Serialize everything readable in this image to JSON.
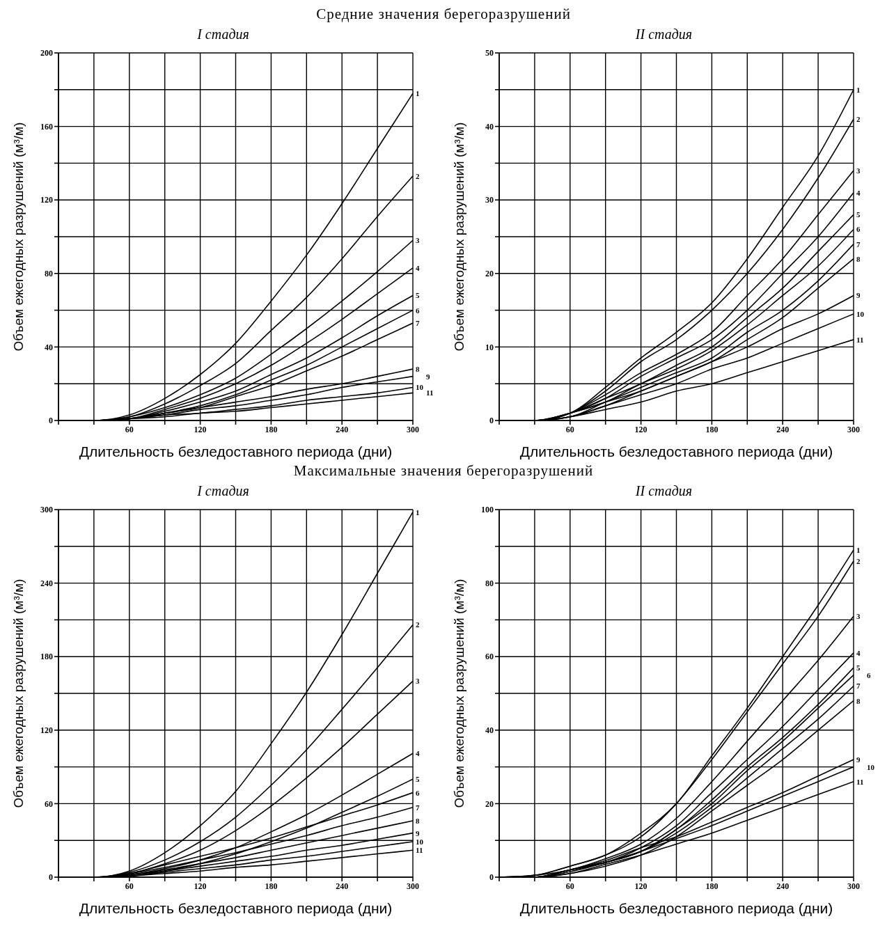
{
  "chart_data": [
    {
      "type": "line",
      "title": "I стадия",
      "annotations": [
        "Средние значения берегоразрушений"
      ],
      "xlabel": "Длительность безледоставного периода (дни)",
      "ylabel": "Объем ежегодных разрушений (м³/м)",
      "x": [
        0,
        30,
        60,
        90,
        120,
        150,
        180,
        210,
        240,
        270,
        300
      ],
      "xlim": [
        0,
        300
      ],
      "xticks": [
        {
          "value": 0,
          "label": null
        },
        {
          "value": 30,
          "label": null
        },
        60,
        {
          "value": 90,
          "label": null
        },
        120,
        {
          "value": 150,
          "label": null
        },
        180,
        {
          "value": 210,
          "label": null
        },
        240,
        {
          "value": 270,
          "label": null
        },
        300
      ],
      "ylim": [
        0,
        200
      ],
      "yticks": [
        0,
        {
          "value": 20,
          "label": null
        },
        40,
        {
          "value": 60,
          "label": null
        },
        80,
        {
          "value": 100,
          "label": null
        },
        120,
        {
          "value": 140,
          "label": null
        },
        160,
        {
          "value": 180,
          "label": null
        },
        200
      ],
      "grid": true,
      "marker": "none",
      "line_style": "solid",
      "series": [
        {
          "name": "1",
          "color": "#000000",
          "values": [
            0,
            0,
            3,
            12,
            25,
            42,
            65,
            90,
            118,
            148,
            178
          ]
        },
        {
          "name": "2",
          "color": "#000000",
          "values": [
            0,
            0,
            2,
            9,
            19,
            31,
            49,
            67,
            88,
            111,
            133
          ]
        },
        {
          "name": "3",
          "color": "#000000",
          "values": [
            0,
            0,
            2,
            7,
            14,
            23,
            36,
            50,
            65,
            81,
            98
          ]
        },
        {
          "name": "4",
          "color": "#000000",
          "values": [
            0,
            0,
            1,
            6,
            12,
            20,
            30,
            42,
            55,
            69,
            83
          ]
        },
        {
          "name": "5",
          "color": "#000000",
          "values": [
            0,
            0,
            1,
            5,
            10,
            16,
            25,
            34,
            45,
            57,
            68
          ]
        },
        {
          "name": "6",
          "color": "#000000",
          "values": [
            0,
            0,
            1,
            4,
            8,
            14,
            22,
            30,
            40,
            50,
            60
          ]
        },
        {
          "name": "7",
          "color": "#000000",
          "values": [
            0,
            0,
            1,
            4,
            7,
            13,
            19,
            27,
            35,
            44,
            53
          ]
        },
        {
          "name": "8",
          "color": "#000000",
          "values": [
            0,
            0,
            1,
            4,
            7,
            10,
            13,
            17,
            20,
            24,
            28
          ]
        },
        {
          "name": "9",
          "color": "#000000",
          "values": [
            0,
            0,
            1,
            3,
            6,
            8,
            11,
            14,
            18,
            21,
            24
          ]
        },
        {
          "name": "10",
          "color": "#000000",
          "values": [
            0,
            0,
            1,
            3,
            4,
            6,
            8,
            11,
            13,
            15,
            18
          ]
        },
        {
          "name": "11",
          "color": "#000000",
          "values": [
            0,
            0,
            1,
            2,
            4,
            5,
            7,
            9,
            11,
            13,
            15
          ]
        }
      ]
    },
    {
      "type": "line",
      "title": "II стадия",
      "xlabel": "Длительность безледоставного периода (дни)",
      "ylabel": "Объем ежегодных разрушений (м³/м)",
      "x": [
        0,
        30,
        60,
        90,
        120,
        150,
        180,
        210,
        240,
        270,
        300
      ],
      "xlim": [
        0,
        300
      ],
      "xticks": [
        {
          "value": 0,
          "label": null
        },
        {
          "value": 30,
          "label": null
        },
        60,
        {
          "value": 90,
          "label": null
        },
        120,
        {
          "value": 150,
          "label": null
        },
        180,
        {
          "value": 210,
          "label": null
        },
        240,
        {
          "value": 270,
          "label": null
        },
        300
      ],
      "ylim": [
        0,
        50
      ],
      "yticks": [
        0,
        {
          "value": 5,
          "label": null
        },
        10,
        {
          "value": 15,
          "label": null
        },
        20,
        {
          "value": 25,
          "label": null
        },
        30,
        {
          "value": 35,
          "label": null
        },
        40,
        {
          "value": 45,
          "label": null
        },
        50
      ],
      "grid": true,
      "marker": "none",
      "line_style": "solid",
      "series": [
        {
          "name": "1",
          "color": "#000000",
          "values": [
            0,
            0,
            1,
            4.5,
            8.5,
            12,
            16,
            22,
            29,
            36,
            45
          ]
        },
        {
          "name": "2",
          "color": "#000000",
          "values": [
            0,
            0,
            1,
            4,
            8,
            11,
            15,
            20,
            26,
            33,
            41
          ]
        },
        {
          "name": "3",
          "color": "#000000",
          "values": [
            0,
            0,
            1,
            3.5,
            6.5,
            9,
            12,
            17,
            22,
            28,
            34
          ]
        },
        {
          "name": "4",
          "color": "#000000",
          "values": [
            0,
            0,
            1,
            3,
            6,
            8.5,
            11,
            15,
            20,
            25,
            31
          ]
        },
        {
          "name": "5",
          "color": "#000000",
          "values": [
            0,
            0,
            1,
            3,
            5,
            7.5,
            10,
            14,
            18,
            23,
            28
          ]
        },
        {
          "name": "6",
          "color": "#000000",
          "values": [
            0,
            0,
            1,
            2.5,
            5,
            7,
            9.5,
            13,
            17,
            21,
            26
          ]
        },
        {
          "name": "7",
          "color": "#000000",
          "values": [
            0,
            0,
            0.5,
            2.5,
            4.5,
            6.5,
            8.5,
            12,
            15,
            19,
            24
          ]
        },
        {
          "name": "8",
          "color": "#000000",
          "values": [
            0,
            0,
            0.5,
            2,
            4,
            6,
            8,
            11,
            14,
            18,
            22
          ]
        },
        {
          "name": "9",
          "color": "#000000",
          "values": [
            0,
            0,
            1,
            2.5,
            4,
            6,
            8,
            10,
            12.5,
            14.5,
            17
          ]
        },
        {
          "name": "10",
          "color": "#000000",
          "values": [
            0,
            0,
            0.5,
            2,
            3.5,
            5,
            7,
            8.5,
            10.5,
            12.5,
            14.5
          ]
        },
        {
          "name": "11",
          "color": "#000000",
          "values": [
            0,
            0,
            0.5,
            1.5,
            2.5,
            4,
            5,
            6.5,
            8,
            9.5,
            11
          ]
        }
      ]
    },
    {
      "type": "line",
      "title": "I стадия",
      "annotations": [
        "Максимальные значения берегоразрушений"
      ],
      "xlabel": "Длительность безледоставного периода (дни)",
      "ylabel": "Объем ежегодных разрушений (м³/м)",
      "x": [
        0,
        30,
        60,
        90,
        120,
        150,
        180,
        210,
        240,
        270,
        300
      ],
      "xlim": [
        0,
        300
      ],
      "xticks": [
        {
          "value": 0,
          "label": null
        },
        {
          "value": 30,
          "label": null
        },
        60,
        {
          "value": 90,
          "label": null
        },
        120,
        {
          "value": 150,
          "label": null
        },
        180,
        {
          "value": 210,
          "label": null
        },
        240,
        {
          "value": 270,
          "label": null
        },
        300
      ],
      "ylim": [
        0,
        300
      ],
      "yticks": [
        0,
        {
          "value": 30,
          "label": null
        },
        60,
        {
          "value": 90,
          "label": null
        },
        120,
        {
          "value": 150,
          "label": null
        },
        180,
        {
          "value": 210,
          "label": null
        },
        240,
        {
          "value": 270,
          "label": null
        },
        300
      ],
      "grid": true,
      "marker": "none",
      "line_style": "solid",
      "series": [
        {
          "name": "1",
          "color": "#000000",
          "values": [
            0,
            0,
            5,
            20,
            42,
            70,
            109,
            151,
            198,
            248,
            298
          ]
        },
        {
          "name": "2",
          "color": "#000000",
          "values": [
            0,
            0,
            4,
            14,
            29,
            49,
            75,
            104,
            137,
            171,
            206
          ]
        },
        {
          "name": "3",
          "color": "#000000",
          "values": [
            0,
            0,
            3,
            11,
            22,
            38,
            58,
            81,
            106,
            133,
            160
          ]
        },
        {
          "name": "4",
          "color": "#000000",
          "values": [
            0,
            0,
            2,
            7,
            14,
            24,
            37,
            51,
            67,
            84,
            101
          ]
        },
        {
          "name": "5",
          "color": "#000000",
          "values": [
            0,
            0,
            1,
            5,
            11,
            19,
            29,
            40,
            53,
            66,
            80
          ]
        },
        {
          "name": "6",
          "color": "#000000",
          "values": [
            0,
            0,
            3,
            10,
            17,
            24,
            32,
            41,
            50,
            59,
            69
          ]
        },
        {
          "name": "7",
          "color": "#000000",
          "values": [
            0,
            0,
            3,
            8,
            14,
            20,
            27,
            34,
            42,
            49,
            57
          ]
        },
        {
          "name": "8",
          "color": "#000000",
          "values": [
            0,
            0,
            2,
            6,
            11,
            16,
            22,
            28,
            34,
            40,
            46
          ]
        },
        {
          "name": "9",
          "color": "#000000",
          "values": [
            0,
            0,
            2,
            5,
            9,
            13,
            17,
            22,
            26,
            31,
            36
          ]
        },
        {
          "name": "10",
          "color": "#000000",
          "values": [
            0,
            0,
            1,
            4,
            7,
            10,
            14,
            17,
            21,
            25,
            29
          ]
        },
        {
          "name": "11",
          "color": "#000000",
          "values": [
            0,
            0,
            1,
            3,
            5,
            8,
            10,
            13,
            16,
            19,
            22
          ]
        }
      ]
    },
    {
      "type": "line",
      "title": "II стадия",
      "xlabel": "Длительность безледоставного периода (дни)",
      "ylabel": "Объем ежегодных разрушений (м³/м)",
      "x": [
        0,
        30,
        60,
        90,
        120,
        150,
        180,
        210,
        240,
        270,
        300
      ],
      "xlim": [
        0,
        300
      ],
      "xticks": [
        {
          "value": 0,
          "label": null
        },
        {
          "value": 30,
          "label": null
        },
        60,
        {
          "value": 90,
          "label": null
        },
        120,
        {
          "value": 150,
          "label": null
        },
        180,
        {
          "value": 210,
          "label": null
        },
        240,
        {
          "value": 270,
          "label": null
        },
        300
      ],
      "ylim": [
        0,
        100
      ],
      "yticks": [
        0,
        {
          "value": 10,
          "label": null
        },
        20,
        {
          "value": 30,
          "label": null
        },
        40,
        {
          "value": 50,
          "label": null
        },
        60,
        {
          "value": 70,
          "label": null
        },
        80,
        {
          "value": 90,
          "label": null
        },
        100
      ],
      "grid": true,
      "marker": "none",
      "line_style": "solid",
      "series": [
        {
          "name": "1",
          "color": "#000000",
          "values": [
            0,
            0.5,
            3,
            6,
            12,
            20,
            33,
            46,
            60,
            74,
            89
          ]
        },
        {
          "name": "2",
          "color": "#000000",
          "values": [
            0,
            0.5,
            3,
            6,
            11,
            20,
            32,
            45,
            58,
            71,
            86
          ]
        },
        {
          "name": "3",
          "color": "#000000",
          "values": [
            0,
            0.5,
            2,
            5,
            9,
            16,
            26,
            37,
            48,
            59,
            71
          ]
        },
        {
          "name": "4",
          "color": "#000000",
          "values": [
            0,
            0,
            2,
            4,
            8,
            14,
            23,
            32,
            41,
            51,
            61
          ]
        },
        {
          "name": "5",
          "color": "#000000",
          "values": [
            0,
            0,
            2,
            4,
            7,
            13,
            21,
            30,
            38,
            47,
            57
          ]
        },
        {
          "name": "6",
          "color": "#000000",
          "values": [
            0,
            0,
            2,
            4,
            7,
            13,
            20,
            29,
            37,
            46,
            55
          ]
        },
        {
          "name": "7",
          "color": "#000000",
          "values": [
            0,
            0,
            2,
            4,
            7,
            12,
            19,
            27,
            35,
            43,
            52
          ]
        },
        {
          "name": "8",
          "color": "#000000",
          "values": [
            0,
            0,
            1,
            3,
            6,
            11,
            18,
            25,
            32,
            40,
            48
          ]
        },
        {
          "name": "9",
          "color": "#000000",
          "values": [
            0,
            0,
            2,
            4.5,
            8,
            11,
            15,
            19,
            23,
            27.5,
            32
          ]
        },
        {
          "name": "10",
          "color": "#000000",
          "values": [
            0,
            0,
            1.5,
            4,
            7,
            10.5,
            14,
            18,
            22,
            26,
            30
          ]
        },
        {
          "name": "11",
          "color": "#000000",
          "values": [
            0,
            0,
            1,
            3.5,
            6,
            9,
            12,
            15.5,
            19,
            22.5,
            26
          ]
        }
      ]
    }
  ]
}
